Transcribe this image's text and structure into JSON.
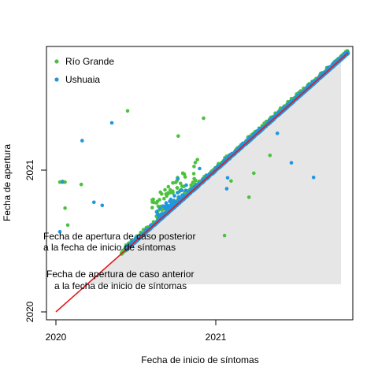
{
  "chart_data": {
    "type": "scatter",
    "xlabel": "Fecha de inicio de síntomas",
    "ylabel": "Fecha de apertura",
    "x_ticks": [
      "2020",
      "2021"
    ],
    "y_ticks": [
      "2020",
      "2021"
    ],
    "legend_position": "top-left",
    "grid": false,
    "reference_line": {
      "label": "",
      "color": "#e31a1c",
      "from": [
        "2020-01-01",
        "2020-01-01"
      ],
      "to": [
        "2021-10-31",
        "2021-10-31"
      ]
    },
    "region_lower": {
      "color": "#e6e6e6"
    },
    "annotations": [
      {
        "id": "upper",
        "lines": [
          "Fecha de apertura de caso posterior",
          "a la fecha de inicio de síntomas"
        ]
      },
      {
        "id": "lower",
        "lines": [
          "Fecha de apertura de caso anterior",
          "a la fecha de inicio de síntomas"
        ]
      }
    ],
    "series": [
      {
        "name": "Río Grande",
        "color": "#4dc13f",
        "outliers": [
          [
            "2020-01-10",
            "2020-12-01"
          ],
          [
            "2020-01-16",
            "2020-12-03"
          ],
          [
            "2020-01-22",
            "2020-12-01"
          ],
          [
            "2020-02-28",
            "2020-11-25"
          ],
          [
            "2020-06-13",
            "2021-06-03"
          ],
          [
            "2020-01-22",
            "2020-09-25"
          ],
          [
            "2020-01-28",
            "2020-08-12"
          ],
          [
            "2020-12-04",
            "2021-05-15"
          ],
          [
            "2020-10-07",
            "2021-03-30"
          ],
          [
            "2020-11-20",
            "2021-01-28"
          ],
          [
            "2021-02-05",
            "2020-12-04"
          ],
          [
            "2021-03-18",
            "2020-10-23"
          ],
          [
            "2021-01-21",
            "2020-07-16"
          ],
          [
            "2021-05-05",
            "2021-02-08"
          ],
          [
            "2021-03-29",
            "2020-12-24"
          ],
          [
            "2020-09-10",
            "2020-10-03"
          ]
        ]
      },
      {
        "name": "Ushuaia",
        "color": "#2196e0",
        "outliers": [
          [
            "2020-01-16",
            "2020-12-01"
          ],
          [
            "2020-03-01",
            "2021-03-18"
          ],
          [
            "2020-03-28",
            "2020-10-10"
          ],
          [
            "2020-05-08",
            "2021-05-03"
          ],
          [
            "2020-04-16",
            "2020-10-02"
          ],
          [
            "2020-01-10",
            "2020-07-26"
          ],
          [
            "2021-01-26",
            "2020-11-14"
          ],
          [
            "2021-01-28",
            "2020-12-12"
          ],
          [
            "2021-08-13",
            "2020-12-13"
          ],
          [
            "2021-06-23",
            "2021-01-20"
          ],
          [
            "2020-11-25",
            "2021-01-05"
          ],
          [
            "2020-10-06",
            "2020-12-10"
          ],
          [
            "2021-05-22",
            "2021-04-06"
          ],
          [
            "2021-02-19",
            "2021-02-20"
          ]
        ]
      }
    ]
  }
}
